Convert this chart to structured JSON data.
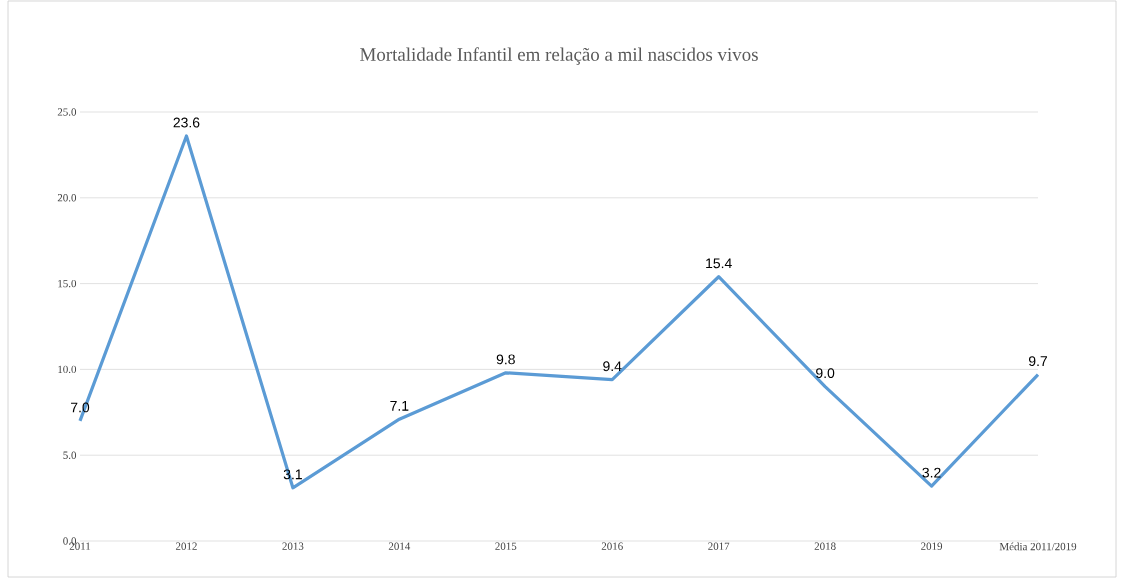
{
  "chart_data": {
    "type": "line",
    "title": "Mortalidade Infantil em relação a mil nascidos vivos",
    "categories": [
      "2011",
      "2012",
      "2013",
      "2014",
      "2015",
      "2016",
      "2017",
      "2018",
      "2019",
      "Média 2011/2019"
    ],
    "series": [
      {
        "color": "#5b9bd5",
        "values": [
          7.0,
          23.6,
          3.1,
          7.1,
          9.8,
          9.4,
          15.4,
          9.0,
          3.2,
          9.7
        ],
        "value_labels": [
          "7.0",
          "23.6",
          "3.1",
          "7.1",
          "9.8",
          "9.4",
          "15.4",
          "9.0",
          "3.2",
          "9.7"
        ]
      }
    ],
    "ylim": [
      0,
      25
    ],
    "yticks": [
      {
        "value": 0,
        "label": "0.0"
      },
      {
        "value": 5,
        "label": "5.0"
      },
      {
        "value": 10,
        "label": "10.0"
      },
      {
        "value": 15,
        "label": "15.0"
      },
      {
        "value": 20,
        "label": "20.0"
      },
      {
        "value": 25,
        "label": "25.0"
      }
    ],
    "grid": "y",
    "legend": false,
    "marker": "none",
    "line_style": "solid"
  }
}
